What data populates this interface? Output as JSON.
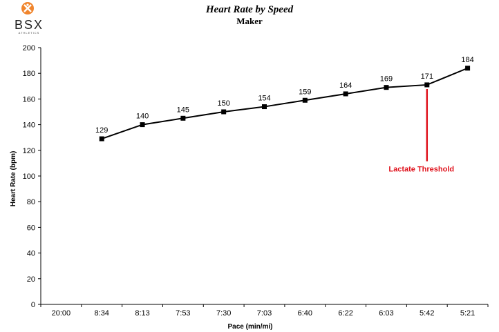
{
  "logo": {
    "brand": "BSX",
    "tagline": "ATHLETICS",
    "accent": "#f0852d"
  },
  "chart_data": {
    "type": "line",
    "title": "Heart Rate by Speed",
    "subtitle": "Maker",
    "xlabel": "Pace (min/mi)",
    "ylabel": "Heart Rate (bpm)",
    "categories": [
      "20:00",
      "8:34",
      "8:13",
      "7:53",
      "7:30",
      "7:03",
      "6:40",
      "6:22",
      "6:03",
      "5:42",
      "5:21"
    ],
    "series": [
      {
        "values": [
          null,
          129,
          140,
          145,
          150,
          154,
          159,
          164,
          169,
          171,
          184
        ],
        "color": "#000000"
      }
    ],
    "ylim": [
      0,
      200
    ],
    "yticks": [
      0,
      20,
      40,
      60,
      80,
      100,
      120,
      140,
      160,
      180,
      200
    ],
    "grid": false,
    "annotation": {
      "text": "Lactate Threshold",
      "category": "5:42",
      "from_value": 171,
      "to_value": 112,
      "color": "#e0141e"
    }
  }
}
